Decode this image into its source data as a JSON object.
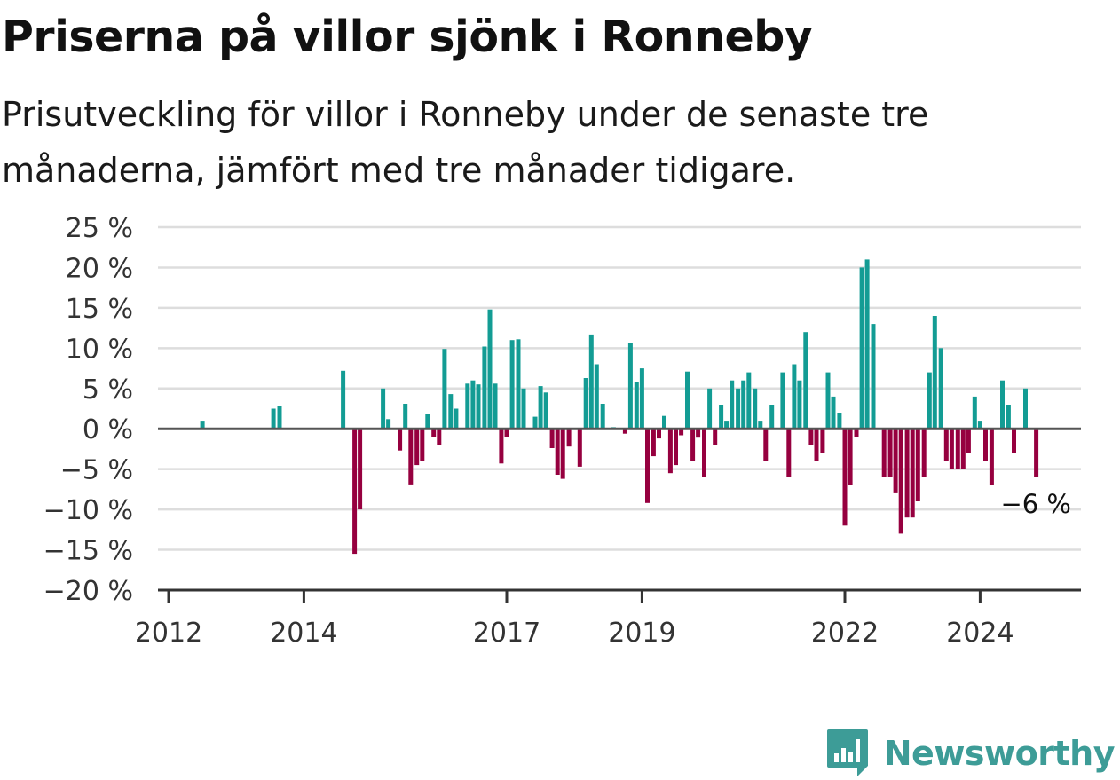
{
  "title": "Priserna på villor sjönk i Ronneby",
  "subtitle": "Prisutveckling för villor i Ronneby under de senaste tre månaderna, jämfört med tre månader tidigare.",
  "brand": {
    "name": "Newsworthy",
    "icon": "newsworthy-logo-icon",
    "color": "#3d9c97"
  },
  "colors": {
    "positive": "#139c94",
    "negative": "#96003f",
    "grid": "#dddddd",
    "axis": "#333333"
  },
  "chart_data": {
    "type": "bar",
    "title": "Priserna på villor sjönk i Ronneby",
    "xlabel": "",
    "ylabel": "",
    "ylim": [
      -20,
      25
    ],
    "yticks": [
      25,
      20,
      15,
      10,
      5,
      0,
      -5,
      -10,
      -15,
      -20
    ],
    "ytick_labels": [
      "25 %",
      "20 %",
      "15 %",
      "10 %",
      "5 %",
      "0 %",
      "−5 %",
      "−10 %",
      "−15 %",
      "−20 %"
    ],
    "xticks": [
      {
        "label": "2012",
        "year": 2012.0
      },
      {
        "label": "2014",
        "year": 2014.0
      },
      {
        "label": "2017",
        "year": 2017.0
      },
      {
        "label": "2019",
        "year": 2019.0
      },
      {
        "label": "2022",
        "year": 2022.0
      },
      {
        "label": "2024",
        "year": 2024.0
      }
    ],
    "annotation": {
      "text": "−6 %",
      "year": 2024.8,
      "value": -6
    },
    "values": [
      {
        "year": 2012.5,
        "value": 1
      },
      {
        "year": 2013.55,
        "value": 2.5
      },
      {
        "year": 2013.64,
        "value": 2.8
      },
      {
        "year": 2014.58,
        "value": 7.2
      },
      {
        "year": 2014.75,
        "value": -15.5
      },
      {
        "year": 2014.83,
        "value": -10
      },
      {
        "year": 2015.17,
        "value": 5
      },
      {
        "year": 2015.25,
        "value": 1.2
      },
      {
        "year": 2015.42,
        "value": -2.7
      },
      {
        "year": 2015.5,
        "value": 3.1
      },
      {
        "year": 2015.58,
        "value": -6.9
      },
      {
        "year": 2015.67,
        "value": -4.5
      },
      {
        "year": 2015.75,
        "value": -4
      },
      {
        "year": 2015.83,
        "value": 1.9
      },
      {
        "year": 2015.92,
        "value": -1
      },
      {
        "year": 2016.0,
        "value": -2
      },
      {
        "year": 2016.08,
        "value": 9.9
      },
      {
        "year": 2016.17,
        "value": 4.3
      },
      {
        "year": 2016.25,
        "value": 2.5
      },
      {
        "year": 2016.42,
        "value": 5.6
      },
      {
        "year": 2016.5,
        "value": 6
      },
      {
        "year": 2016.58,
        "value": 5.5
      },
      {
        "year": 2016.67,
        "value": 10.2
      },
      {
        "year": 2016.75,
        "value": 14.8
      },
      {
        "year": 2016.83,
        "value": 5.6
      },
      {
        "year": 2016.92,
        "value": -4.3
      },
      {
        "year": 2017.0,
        "value": -1
      },
      {
        "year": 2017.08,
        "value": 11
      },
      {
        "year": 2017.17,
        "value": 11.1
      },
      {
        "year": 2017.25,
        "value": 5
      },
      {
        "year": 2017.42,
        "value": 1.5
      },
      {
        "year": 2017.5,
        "value": 5.3
      },
      {
        "year": 2017.58,
        "value": 4.5
      },
      {
        "year": 2017.67,
        "value": -2.4
      },
      {
        "year": 2017.75,
        "value": -5.7
      },
      {
        "year": 2017.83,
        "value": -6.2
      },
      {
        "year": 2017.92,
        "value": -2.2
      },
      {
        "year": 2018.08,
        "value": -4.7
      },
      {
        "year": 2018.17,
        "value": 6.3
      },
      {
        "year": 2018.25,
        "value": 11.7
      },
      {
        "year": 2018.33,
        "value": 8
      },
      {
        "year": 2018.42,
        "value": 3.1
      },
      {
        "year": 2018.58,
        "value": 0.2
      },
      {
        "year": 2018.75,
        "value": -0.6
      },
      {
        "year": 2018.83,
        "value": 10.7
      },
      {
        "year": 2018.92,
        "value": 5.8
      },
      {
        "year": 2019.0,
        "value": 7.5
      },
      {
        "year": 2019.08,
        "value": -9.2
      },
      {
        "year": 2019.17,
        "value": -3.4
      },
      {
        "year": 2019.25,
        "value": -1.2
      },
      {
        "year": 2019.33,
        "value": 1.6
      },
      {
        "year": 2019.42,
        "value": -5.5
      },
      {
        "year": 2019.5,
        "value": -4.5
      },
      {
        "year": 2019.58,
        "value": -0.8
      },
      {
        "year": 2019.67,
        "value": 7.1
      },
      {
        "year": 2019.75,
        "value": -4
      },
      {
        "year": 2019.83,
        "value": -1.1
      },
      {
        "year": 2019.92,
        "value": -6
      },
      {
        "year": 2020.0,
        "value": 5
      },
      {
        "year": 2020.08,
        "value": -2
      },
      {
        "year": 2020.17,
        "value": 3
      },
      {
        "year": 2020.25,
        "value": 1
      },
      {
        "year": 2020.33,
        "value": 6
      },
      {
        "year": 2020.42,
        "value": 5
      },
      {
        "year": 2020.5,
        "value": 6
      },
      {
        "year": 2020.58,
        "value": 7
      },
      {
        "year": 2020.67,
        "value": 5
      },
      {
        "year": 2020.75,
        "value": 1
      },
      {
        "year": 2020.83,
        "value": -4
      },
      {
        "year": 2020.92,
        "value": 3
      },
      {
        "year": 2021.08,
        "value": 7
      },
      {
        "year": 2021.17,
        "value": -6
      },
      {
        "year": 2021.25,
        "value": 8
      },
      {
        "year": 2021.33,
        "value": 6
      },
      {
        "year": 2021.42,
        "value": 12
      },
      {
        "year": 2021.5,
        "value": -2
      },
      {
        "year": 2021.58,
        "value": -4
      },
      {
        "year": 2021.67,
        "value": -3
      },
      {
        "year": 2021.75,
        "value": 7
      },
      {
        "year": 2021.83,
        "value": 4
      },
      {
        "year": 2021.92,
        "value": 2
      },
      {
        "year": 2022.0,
        "value": -12
      },
      {
        "year": 2022.08,
        "value": -7
      },
      {
        "year": 2022.17,
        "value": -1
      },
      {
        "year": 2022.25,
        "value": 20
      },
      {
        "year": 2022.33,
        "value": 21
      },
      {
        "year": 2022.42,
        "value": 13
      },
      {
        "year": 2022.58,
        "value": -6
      },
      {
        "year": 2022.67,
        "value": -6
      },
      {
        "year": 2022.75,
        "value": -8
      },
      {
        "year": 2022.83,
        "value": -13
      },
      {
        "year": 2022.92,
        "value": -11
      },
      {
        "year": 2023.0,
        "value": -11
      },
      {
        "year": 2023.08,
        "value": -9
      },
      {
        "year": 2023.17,
        "value": -6
      },
      {
        "year": 2023.25,
        "value": 7
      },
      {
        "year": 2023.33,
        "value": 14
      },
      {
        "year": 2023.42,
        "value": 10
      },
      {
        "year": 2023.5,
        "value": -4
      },
      {
        "year": 2023.58,
        "value": -5
      },
      {
        "year": 2023.67,
        "value": -5
      },
      {
        "year": 2023.75,
        "value": -5
      },
      {
        "year": 2023.83,
        "value": -3
      },
      {
        "year": 2023.92,
        "value": 4
      },
      {
        "year": 2024.0,
        "value": 1
      },
      {
        "year": 2024.08,
        "value": -4
      },
      {
        "year": 2024.17,
        "value": -7
      },
      {
        "year": 2024.33,
        "value": 6
      },
      {
        "year": 2024.42,
        "value": 3
      },
      {
        "year": 2024.5,
        "value": -3
      },
      {
        "year": 2024.67,
        "value": 5
      },
      {
        "year": 2024.83,
        "value": -6
      }
    ]
  }
}
